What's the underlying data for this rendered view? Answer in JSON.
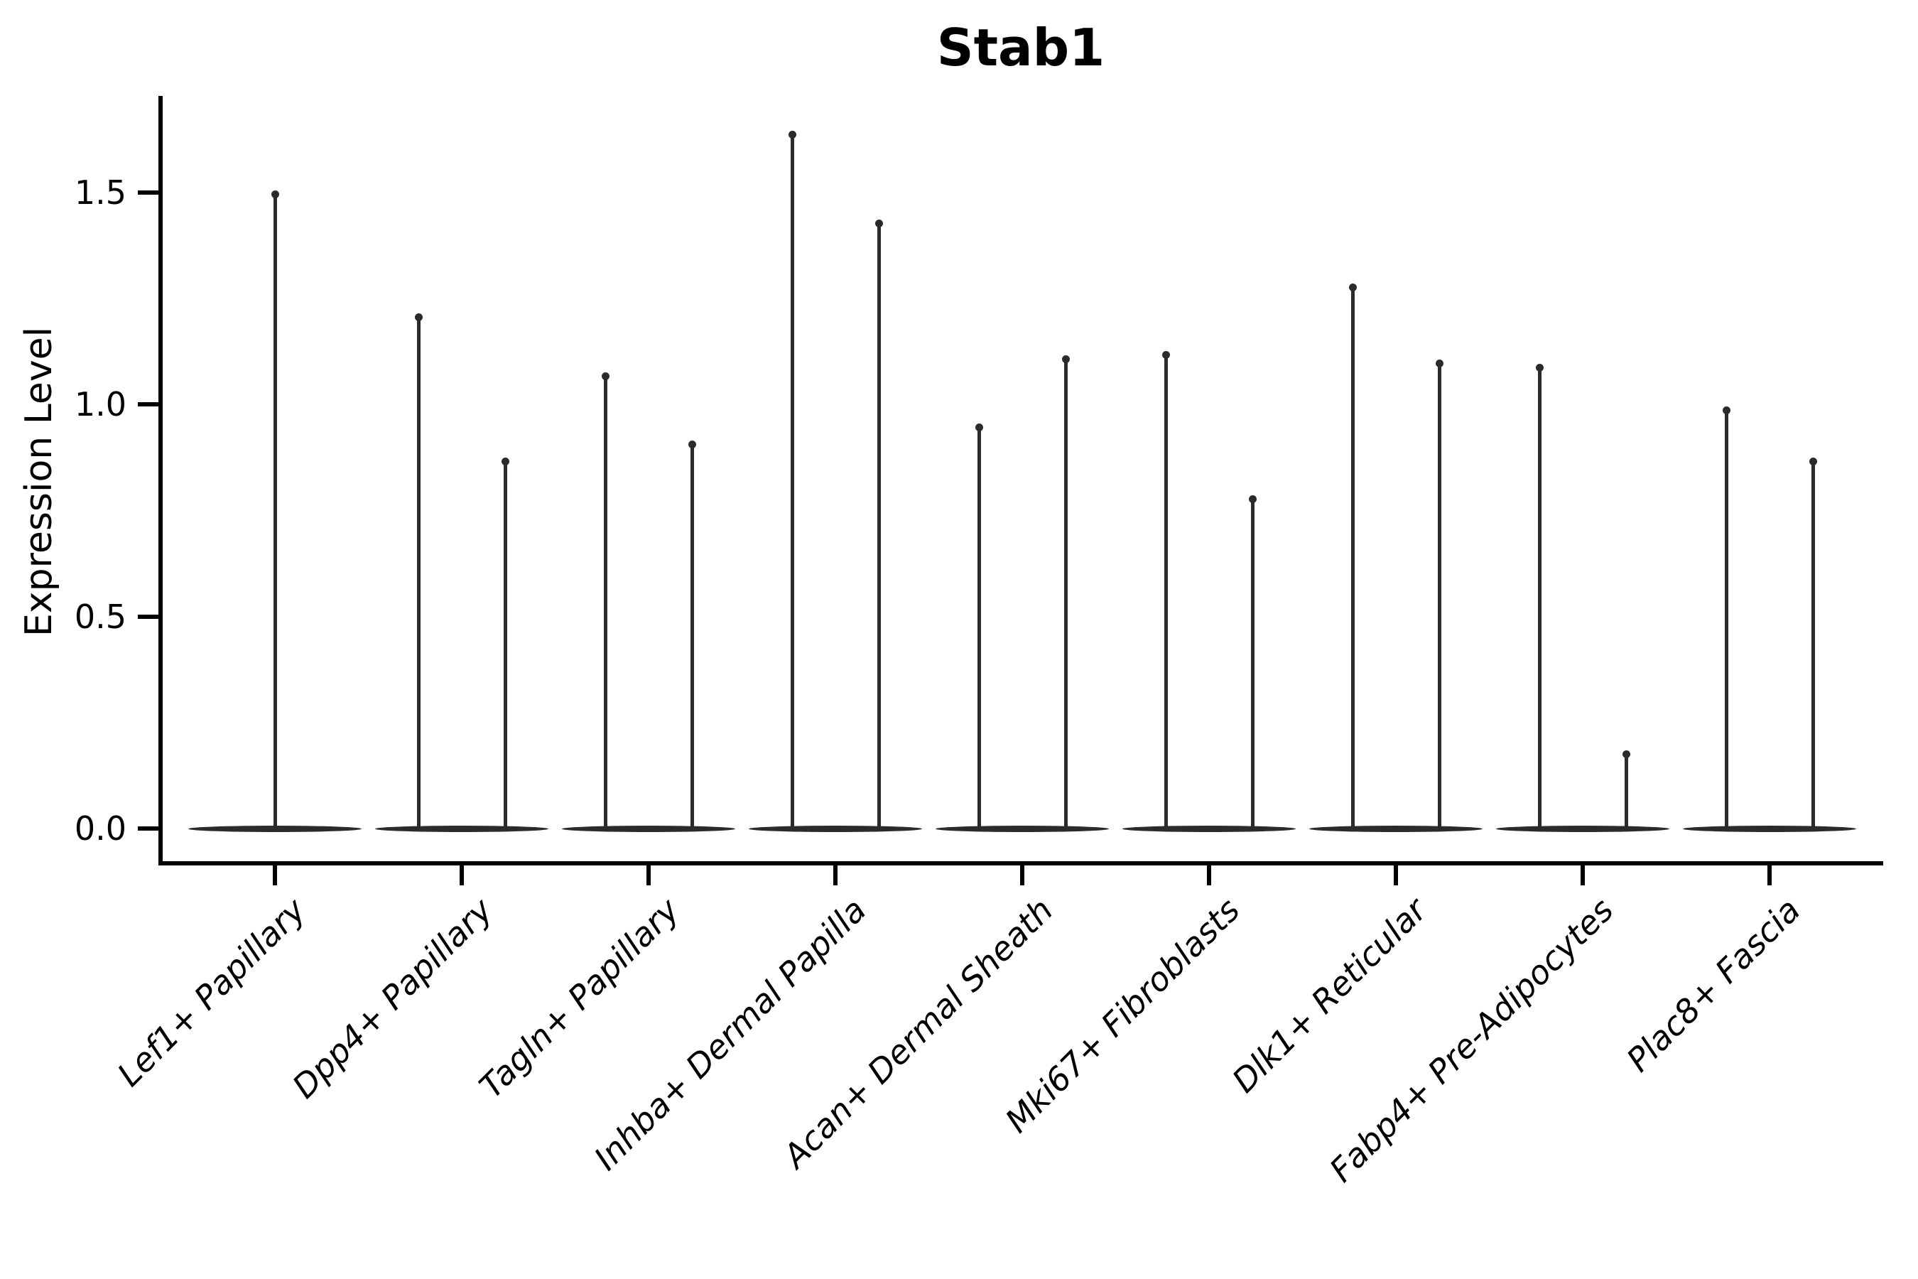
{
  "title": "Stab1",
  "y_axis": {
    "label": "Expression Level",
    "ticks": [
      {
        "label": "0.0",
        "value": 0.0
      },
      {
        "label": "0.5",
        "value": 0.5
      },
      {
        "label": "1.0",
        "value": 1.0
      },
      {
        "label": "1.5",
        "value": 1.5
      }
    ]
  },
  "chart_data": {
    "type": "violin",
    "title": "Stab1",
    "xlabel": "",
    "ylabel": "Expression Level",
    "ylim": [
      -0.08,
      1.73
    ],
    "grid": false,
    "legend": "none",
    "line_color": "#2b2b2b",
    "axis_color": "#000000",
    "categories": [
      "Lef1+ Papillary",
      "Dpp4+ Papillary",
      "Tagln+ Papillary",
      "Inhba+ Dermal Papilla",
      "Acan+ Dermal Sheath",
      "Mki67+ Fibroblasts",
      "Dlk1+ Reticular",
      "Fabp4+ Pre-Adipocytes",
      "Plac8+ Fascia"
    ],
    "series": [
      {
        "name": "Lef1+ Papillary",
        "spike_max_values": [
          1.5
        ]
      },
      {
        "name": "Dpp4+ Papillary",
        "spike_max_values": [
          1.21,
          0.87
        ]
      },
      {
        "name": "Tagln+ Papillary",
        "spike_max_values": [
          1.07,
          0.91
        ]
      },
      {
        "name": "Inhba+ Dermal Papilla",
        "spike_max_values": [
          1.64,
          1.43
        ]
      },
      {
        "name": "Acan+ Dermal Sheath",
        "spike_max_values": [
          0.95,
          1.11
        ]
      },
      {
        "name": "Mki67+ Fibroblasts",
        "spike_max_values": [
          1.12,
          0.78
        ]
      },
      {
        "name": "Dlk1+ Reticular",
        "spike_max_values": [
          1.28,
          1.1
        ]
      },
      {
        "name": "Fabp4+ Pre-Adipocytes",
        "spike_max_values": [
          1.09,
          0.18
        ]
      },
      {
        "name": "Plac8+ Fascia",
        "spike_max_values": [
          0.99,
          0.87
        ]
      }
    ],
    "note": "All violins are flat at 0 with thin density spikes reaching the listed max expression values; body of each violin sits on the 0.0 baseline"
  }
}
